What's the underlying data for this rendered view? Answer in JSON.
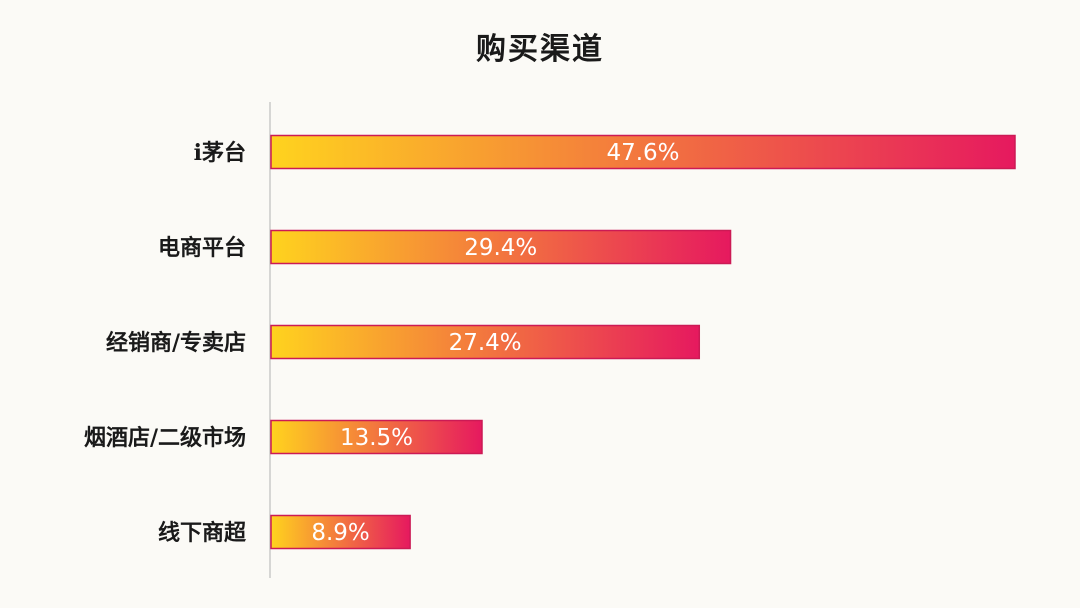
{
  "chart_data": {
    "type": "bar",
    "orientation": "horizontal",
    "title": "购买渠道",
    "categories": [
      "i茅台",
      "电商平台",
      "经销商/专卖店",
      "烟酒店/二级市场",
      "线下商超"
    ],
    "values": [
      47.6,
      29.4,
      27.4,
      13.5,
      8.9
    ],
    "value_labels": [
      "47.6%",
      "29.4%",
      "27.4%",
      "13.5%",
      "8.9%"
    ],
    "unit": "%",
    "xlim": [
      0,
      47.6
    ],
    "grid": false,
    "legend": "none",
    "colors": {
      "gradient_start": "#ffd31e",
      "gradient_end": "#e6195f",
      "bar_border": "#cc1a55",
      "axis": "#bdbdbd",
      "label_text": "#1a1a1a",
      "value_text": "#ffffff"
    }
  }
}
